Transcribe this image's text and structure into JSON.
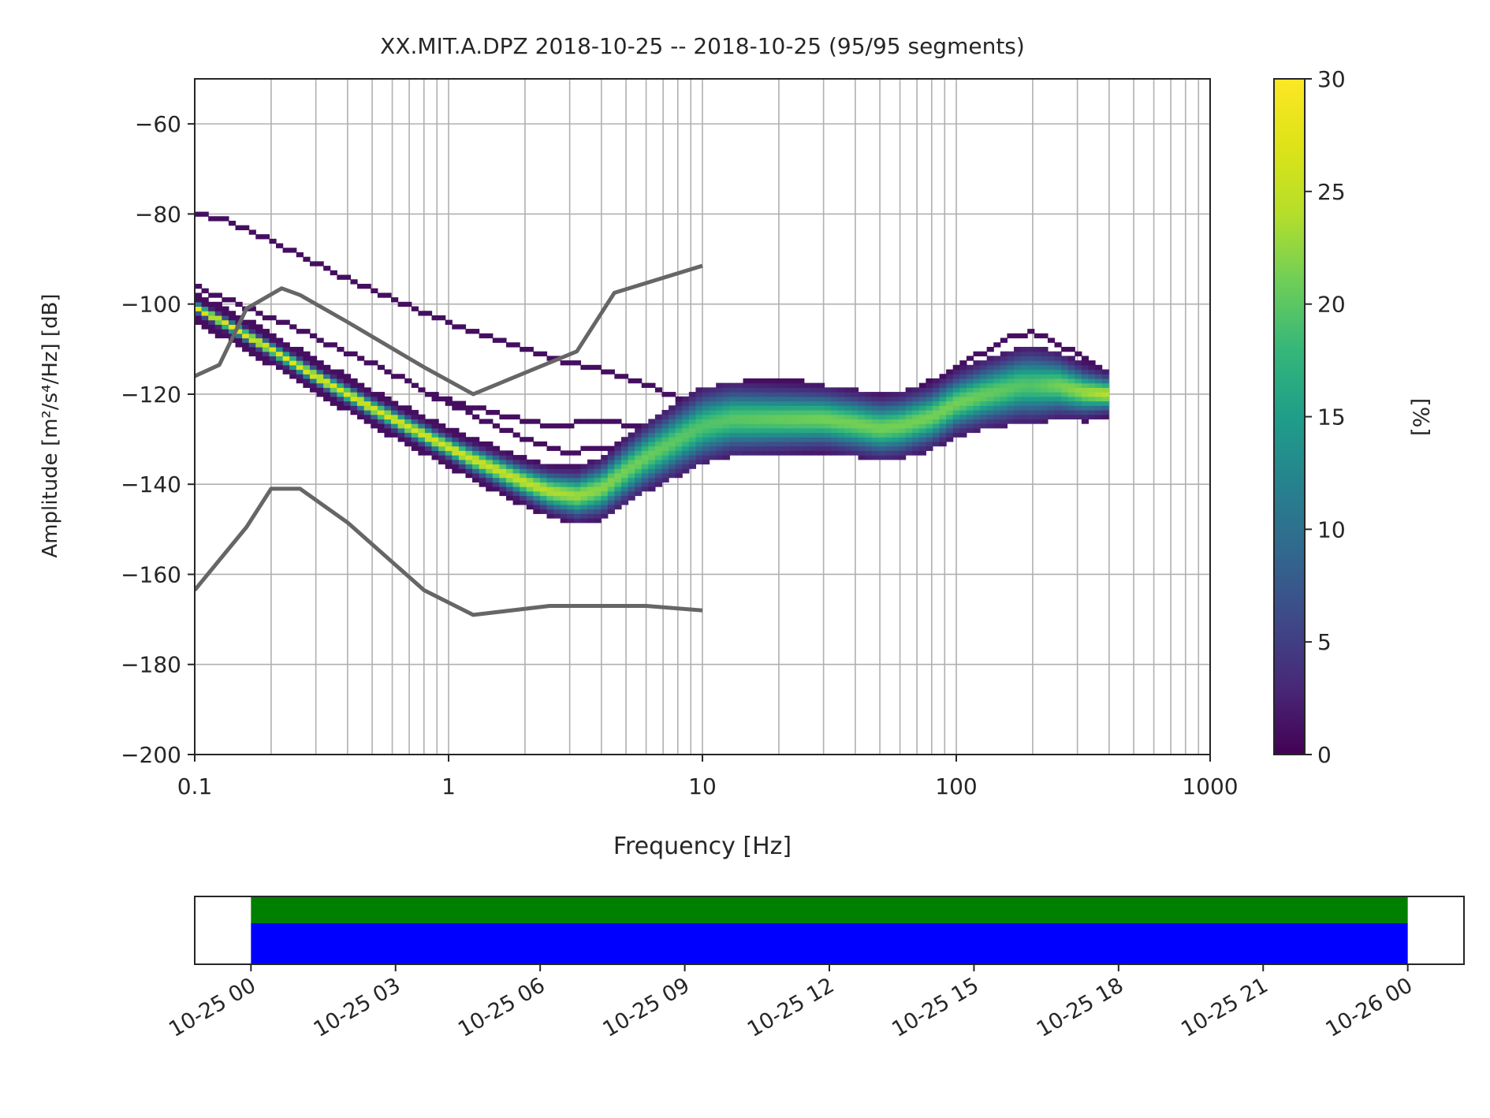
{
  "chart_data": [
    {
      "type": "heatmap",
      "title": "XX.MIT.A.DPZ   2018-10-25 -- 2018-10-25  (95/95 segments)",
      "xlabel": "Frequency [Hz]",
      "ylabel": "Amplitude [m²/s⁴/Hz] [dB]",
      "xscale": "log",
      "xlim": [
        0.1,
        1000
      ],
      "ylim": [
        -200,
        -50
      ],
      "xticks": [
        0.1,
        1,
        10,
        100,
        1000
      ],
      "xtick_labels": [
        "0.1",
        "1",
        "10",
        "100",
        "1000"
      ],
      "yticks": [
        -60,
        -80,
        -100,
        -120,
        -140,
        -160,
        -180,
        -200
      ],
      "ytick_labels": [
        "−60",
        "−80",
        "−100",
        "−120",
        "−140",
        "−160",
        "−180",
        "−200"
      ],
      "grid": true,
      "colormap": "viridis",
      "colorbar": {
        "label": "[%]",
        "range": [
          0,
          30
        ],
        "ticks": [
          0,
          5,
          10,
          15,
          20,
          25,
          30
        ],
        "tick_labels": [
          "0",
          "5",
          "10",
          "15",
          "20",
          "25",
          "30"
        ]
      },
      "psd_mode": [
        [
          0.1,
          -100.5
        ],
        [
          0.15,
          -106
        ],
        [
          0.2,
          -110
        ],
        [
          0.3,
          -116
        ],
        [
          0.5,
          -123
        ],
        [
          0.8,
          -129
        ],
        [
          1.2,
          -134
        ],
        [
          2.0,
          -139.5
        ],
        [
          2.5,
          -141.5
        ],
        [
          3.2,
          -142.5
        ],
        [
          4.0,
          -141
        ],
        [
          5.0,
          -137
        ],
        [
          6.0,
          -134
        ],
        [
          8.0,
          -130
        ],
        [
          10,
          -127
        ],
        [
          13,
          -125.5
        ],
        [
          20,
          -125.5
        ],
        [
          30,
          -125.5
        ],
        [
          40,
          -126.5
        ],
        [
          50,
          -127.5
        ],
        [
          60,
          -127
        ],
        [
          80,
          -125
        ],
        [
          100,
          -122
        ],
        [
          130,
          -120
        ],
        [
          180,
          -118
        ],
        [
          250,
          -118
        ],
        [
          320,
          -119.5
        ],
        [
          410,
          -120
        ]
      ],
      "psd_spread_db": [
        [
          0.1,
          1
        ],
        [
          1,
          2
        ],
        [
          2,
          3
        ],
        [
          3.2,
          4
        ],
        [
          5,
          5
        ],
        [
          10,
          6
        ],
        [
          30,
          5
        ],
        [
          60,
          5
        ],
        [
          100,
          5
        ],
        [
          200,
          6
        ],
        [
          410,
          3
        ]
      ],
      "psd_upper_branches": [
        [
          [
            0.1,
            -96
          ],
          [
            0.2,
            -103
          ],
          [
            0.5,
            -113
          ],
          [
            1.0,
            -122
          ],
          [
            2.0,
            -130
          ],
          [
            3.0,
            -133
          ],
          [
            5.0,
            -131
          ],
          [
            8.0,
            -127
          ],
          [
            10,
            -125
          ]
        ],
        [
          [
            0.1,
            -80
          ],
          [
            0.13,
            -81
          ],
          [
            0.2,
            -86
          ],
          [
            0.3,
            -91
          ],
          [
            0.5,
            -97
          ],
          [
            1.0,
            -104
          ],
          [
            2.0,
            -110
          ],
          [
            3.0,
            -113
          ],
          [
            5.0,
            -116
          ],
          [
            8.0,
            -121
          ],
          [
            10,
            -124
          ]
        ],
        [
          [
            0.8,
            -120
          ],
          [
            1.5,
            -124
          ],
          [
            2.5,
            -127
          ],
          [
            4.0,
            -126
          ],
          [
            6.0,
            -127
          ],
          [
            9.0,
            -126
          ]
        ],
        [
          [
            10,
            -122
          ],
          [
            12,
            -120
          ],
          [
            15,
            -117
          ],
          [
            25,
            -117.5
          ],
          [
            35,
            -120
          ],
          [
            60,
            -120
          ],
          [
            90,
            -116
          ],
          [
            150,
            -108
          ],
          [
            200,
            -106
          ],
          [
            300,
            -111
          ],
          [
            410,
            -117
          ]
        ]
      ],
      "noise_models": [
        {
          "x": [
            0.1,
            0.125,
            0.16,
            0.22,
            0.26,
            0.4,
            0.8,
            1.25,
            3.2,
            4.5,
            10
          ],
          "y": [
            -116,
            -113.5,
            -101,
            -96.5,
            -98,
            -104,
            -114,
            -120,
            -110.5,
            -97.5,
            -91.5
          ]
        },
        {
          "x": [
            0.1,
            0.16,
            0.2,
            0.26,
            0.4,
            0.8,
            1.25,
            2.5,
            3.2,
            6,
            10
          ],
          "y": [
            -163.5,
            -149.5,
            -141,
            -141,
            -148.5,
            -163.5,
            -169,
            -167,
            -167,
            -167,
            -168
          ]
        }
      ]
    },
    {
      "type": "bar",
      "x_is_time": true,
      "xlim": [
        "2018-10-24T22:50",
        "2018-10-26T01:10"
      ],
      "xticks": [
        "2018-10-25T00:00",
        "2018-10-25T03:00",
        "2018-10-25T06:00",
        "2018-10-25T09:00",
        "2018-10-25T12:00",
        "2018-10-25T15:00",
        "2018-10-25T18:00",
        "2018-10-25T21:00",
        "2018-10-26T00:00"
      ],
      "xtick_labels": [
        "10-25 00",
        "10-25 03",
        "10-25 06",
        "10-25 09",
        "10-25 12",
        "10-25 15",
        "10-25 18",
        "10-25 21",
        "10-26 00"
      ],
      "series": [
        {
          "color": "#008000",
          "start": "2018-10-25T00:00",
          "end": "2018-10-26T00:00"
        },
        {
          "color": "#0000ff",
          "start": "2018-10-25T00:00",
          "end": "2018-10-26T00:00"
        }
      ]
    }
  ]
}
